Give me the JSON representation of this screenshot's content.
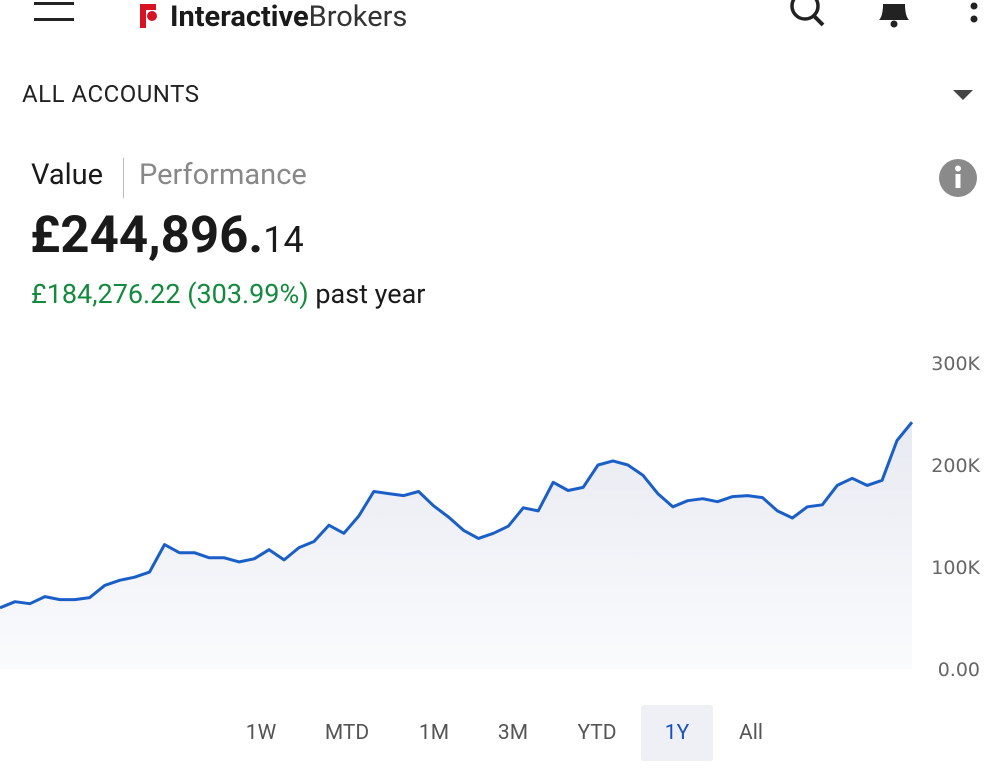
{
  "header": {
    "brand_bold": "Interactive",
    "brand_light": "Brokers"
  },
  "account_selector": "ALL ACCOUNTS",
  "tabs": [
    "Value",
    "Performance"
  ],
  "balance": {
    "main": "£244,896.",
    "cents": "14"
  },
  "change": {
    "amount": "£184,276.22 (303.99%)",
    "period": "past year"
  },
  "chart_data": {
    "type": "area",
    "color": "#1a5fc8",
    "fill": "#eef0f6",
    "values": [
      60000,
      66000,
      64000,
      71000,
      68000,
      68000,
      70000,
      82000,
      87000,
      90000,
      95000,
      122000,
      114000,
      114000,
      109000,
      109000,
      105000,
      108000,
      117000,
      107000,
      119000,
      125000,
      141000,
      133000,
      150000,
      174000,
      172000,
      170000,
      174000,
      160000,
      149000,
      136000,
      128000,
      133000,
      140000,
      158000,
      155000,
      183000,
      175000,
      178000,
      200000,
      204000,
      200000,
      190000,
      172000,
      159000,
      165000,
      167000,
      164000,
      169000,
      170000,
      168000,
      155000,
      148000,
      159000,
      161000,
      180000,
      187000,
      180000,
      185000,
      224000,
      242000
    ],
    "ylim": [
      0,
      300000
    ],
    "yticks": [
      {
        "value": 0,
        "label": "0.00"
      },
      {
        "value": 100000,
        "label": "100K"
      },
      {
        "value": 200000,
        "label": "200K"
      },
      {
        "value": 300000,
        "label": "300K"
      }
    ]
  },
  "ranges": {
    "options": [
      "1W",
      "MTD",
      "1M",
      "3M",
      "YTD",
      "1Y",
      "All"
    ],
    "selected": "1Y"
  }
}
